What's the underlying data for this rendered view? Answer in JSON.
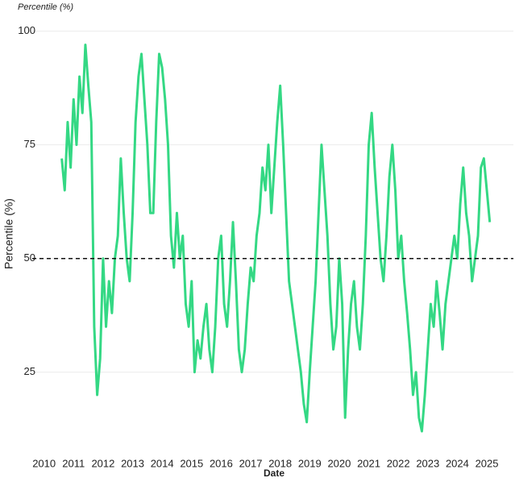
{
  "chart_data": {
    "type": "line",
    "title": "Percentile (%)",
    "x_label": "Date",
    "y_label": "Percentile (%)",
    "x": [
      2010.6,
      2010.7,
      2010.8,
      2010.9,
      2011.0,
      2011.1,
      2011.2,
      2011.3,
      2011.4,
      2011.5,
      2011.6,
      2011.7,
      2011.8,
      2011.9,
      2012.0,
      2012.1,
      2012.2,
      2012.3,
      2012.4,
      2012.5,
      2012.6,
      2012.7,
      2012.8,
      2012.9,
      2013.0,
      2013.1,
      2013.2,
      2013.3,
      2013.4,
      2013.5,
      2013.6,
      2013.7,
      2013.8,
      2013.9,
      2014.0,
      2014.1,
      2014.2,
      2014.3,
      2014.4,
      2014.5,
      2014.6,
      2014.7,
      2014.8,
      2014.9,
      2015.0,
      2015.1,
      2015.2,
      2015.3,
      2015.4,
      2015.5,
      2015.6,
      2015.7,
      2015.8,
      2015.9,
      2016.0,
      2016.1,
      2016.2,
      2016.3,
      2016.4,
      2016.5,
      2016.6,
      2016.7,
      2016.8,
      2016.9,
      2017.0,
      2017.1,
      2017.2,
      2017.3,
      2017.4,
      2017.5,
      2017.6,
      2017.7,
      2017.8,
      2017.9,
      2018.0,
      2018.1,
      2018.2,
      2018.3,
      2018.4,
      2018.5,
      2018.6,
      2018.7,
      2018.8,
      2018.9,
      2019.0,
      2019.1,
      2019.2,
      2019.3,
      2019.4,
      2019.5,
      2019.6,
      2019.7,
      2019.8,
      2019.9,
      2020.0,
      2020.1,
      2020.2,
      2020.3,
      2020.4,
      2020.5,
      2020.6,
      2020.7,
      2020.8,
      2020.9,
      2021.0,
      2021.1,
      2021.2,
      2021.3,
      2021.4,
      2021.5,
      2021.6,
      2021.7,
      2021.8,
      2021.9,
      2022.0,
      2022.1,
      2022.2,
      2022.3,
      2022.4,
      2022.5,
      2022.6,
      2022.7,
      2022.8,
      2022.9,
      2023.0,
      2023.1,
      2023.2,
      2023.3,
      2023.4,
      2023.5,
      2023.6,
      2023.7,
      2023.8,
      2023.9,
      2024.0,
      2024.1,
      2024.2,
      2024.3,
      2024.4,
      2024.5,
      2024.6,
      2024.7,
      2024.8,
      2024.9,
      2025.0,
      2025.1
    ],
    "series": [
      {
        "name": "Percentile (%)",
        "color": "#34d884",
        "values": [
          72,
          65,
          80,
          70,
          85,
          75,
          90,
          82,
          97,
          88,
          80,
          35,
          20,
          28,
          50,
          35,
          45,
          38,
          50,
          55,
          72,
          60,
          50,
          45,
          60,
          80,
          90,
          95,
          85,
          75,
          60,
          60,
          80,
          95,
          92,
          85,
          75,
          55,
          48,
          60,
          50,
          55,
          40,
          35,
          45,
          25,
          32,
          28,
          35,
          40,
          30,
          25,
          35,
          50,
          55,
          40,
          35,
          45,
          58,
          45,
          30,
          25,
          30,
          40,
          48,
          45,
          55,
          60,
          70,
          65,
          75,
          60,
          70,
          80,
          88,
          75,
          60,
          45,
          40,
          35,
          30,
          25,
          18,
          14,
          25,
          35,
          45,
          60,
          75,
          65,
          55,
          40,
          30,
          35,
          50,
          40,
          15,
          30,
          40,
          45,
          35,
          30,
          40,
          55,
          75,
          82,
          70,
          60,
          50,
          45,
          55,
          68,
          75,
          65,
          50,
          55,
          45,
          38,
          30,
          20,
          25,
          15,
          12,
          20,
          30,
          40,
          35,
          45,
          38,
          30,
          40,
          45,
          50,
          55,
          50,
          62,
          70,
          60,
          55,
          45,
          50,
          55,
          70,
          72,
          65,
          58
        ]
      }
    ],
    "hline": 50,
    "xlim": [
      2009.6,
      2025.9
    ],
    "xticks": [
      2010,
      2011,
      2012,
      2013,
      2014,
      2015,
      2016,
      2017,
      2018,
      2019,
      2020,
      2021,
      2022,
      2023,
      2024,
      2025
    ],
    "ylim": [
      9,
      101
    ],
    "yticks": [
      25,
      50,
      75,
      100
    ],
    "grid": true
  }
}
